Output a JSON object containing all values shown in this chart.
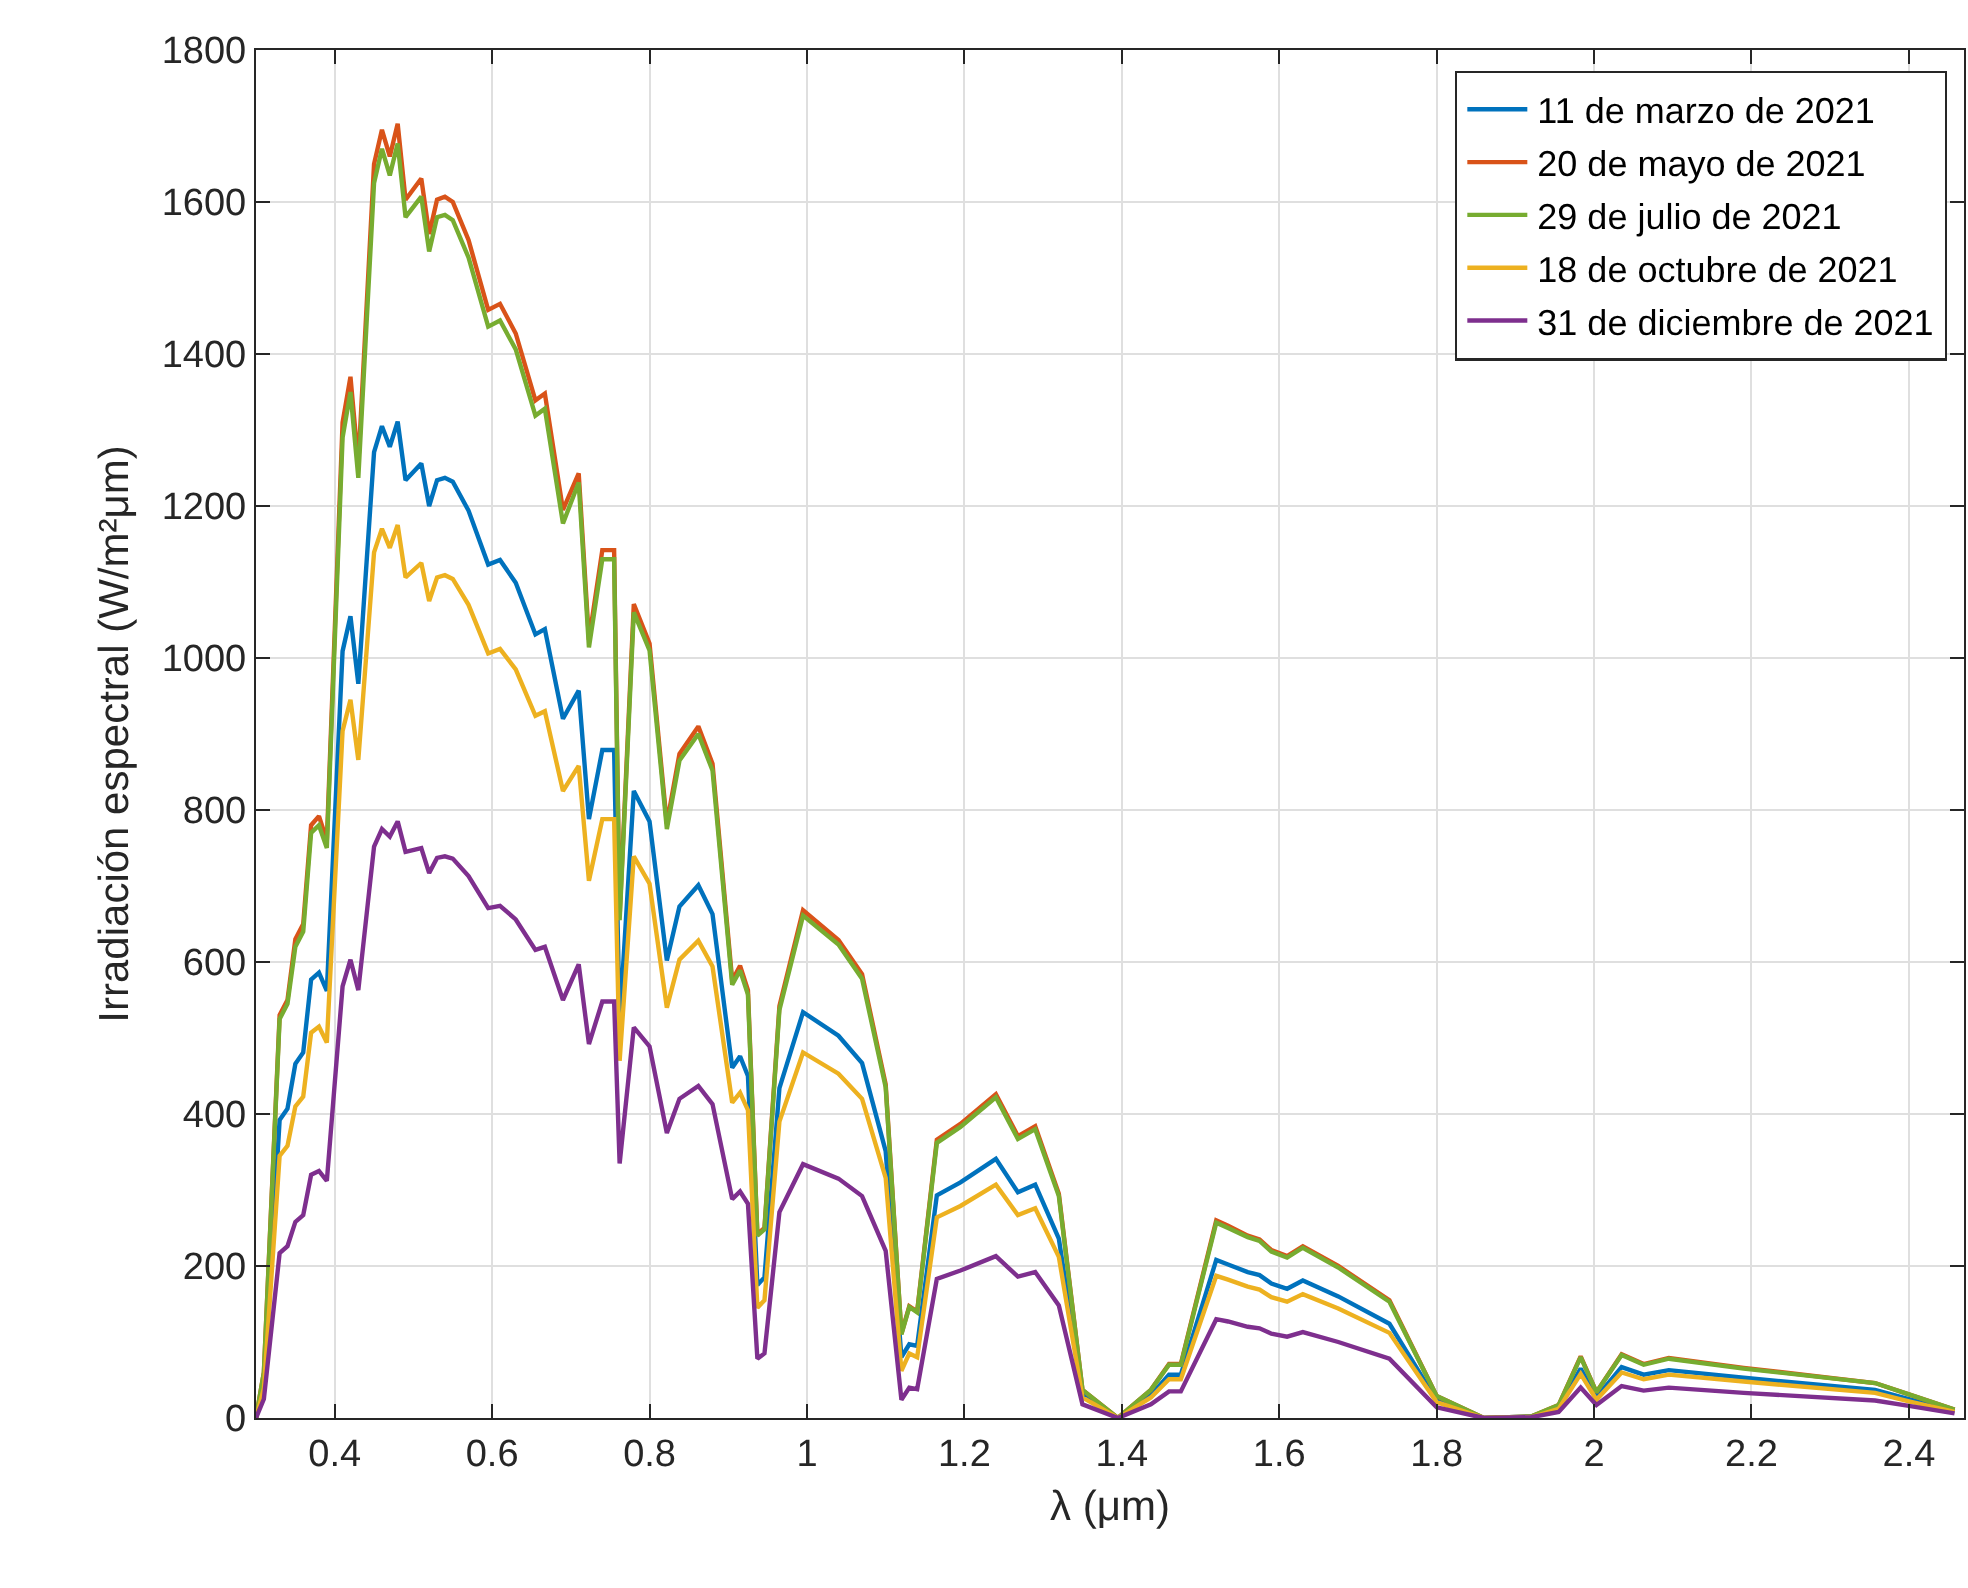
{
  "chart_data": {
    "type": "line",
    "xlabel": "λ (μm)",
    "ylabel": "Irradiación espectral (W/m²μm)",
    "x": [
      0.3,
      0.31,
      0.33,
      0.34,
      0.35,
      0.36,
      0.37,
      0.38,
      0.39,
      0.41,
      0.42,
      0.43,
      0.45,
      0.46,
      0.47,
      0.48,
      0.49,
      0.51,
      0.52,
      0.53,
      0.54,
      0.55,
      0.57,
      0.595,
      0.61,
      0.63,
      0.655,
      0.667,
      0.69,
      0.71,
      0.723,
      0.74,
      0.755,
      0.762,
      0.78,
      0.8,
      0.822,
      0.838,
      0.862,
      0.88,
      0.905,
      0.915,
      0.925,
      0.937,
      0.946,
      0.965,
      0.995,
      1.04,
      1.07,
      1.1,
      1.12,
      1.13,
      1.14,
      1.165,
      1.195,
      1.24,
      1.268,
      1.29,
      1.32,
      1.35,
      1.395,
      1.437,
      1.46,
      1.475,
      1.52,
      1.535,
      1.56,
      1.575,
      1.59,
      1.61,
      1.63,
      1.675,
      1.74,
      1.8,
      1.86,
      1.92,
      1.955,
      1.983,
      2.003,
      2.035,
      2.063,
      2.095,
      2.19,
      2.357,
      2.4,
      2.458
    ],
    "series": [
      {
        "name": "11 de marzo de 2021",
        "color": "#0072bd",
        "values": [
          0,
          44,
          392,
          407,
          466,
          481,
          577,
          586,
          562,
          1009,
          1055,
          966,
          1271,
          1305,
          1278,
          1311,
          1234,
          1256,
          1200,
          1234,
          1237,
          1232,
          1194,
          1123,
          1129,
          1099,
          1031,
          1038,
          920,
          957,
          788,
          879,
          879,
          520,
          825,
          785,
          602,
          673,
          701,
          663,
          461,
          476,
          450,
          175,
          185,
          434,
          534,
          503,
          467,
          351,
          80,
          97,
          95,
          293,
          310,
          341,
          297,
          307,
          236,
          30,
          0,
          30,
          57,
          57,
          208,
          202,
          192,
          188,
          177,
          170,
          181,
          160,
          124,
          23,
          0,
          2,
          14,
          65,
          27,
          67,
          57,
          63,
          53,
          37,
          25,
          9
        ]
      },
      {
        "name": "20 de mayo de 2021",
        "color": "#d95319",
        "values": [
          0,
          60,
          530,
          550,
          630,
          650,
          780,
          792,
          760,
          1310,
          1370,
          1255,
          1650,
          1695,
          1660,
          1703,
          1603,
          1631,
          1558,
          1603,
          1607,
          1600,
          1550,
          1458,
          1466,
          1427,
          1339,
          1348,
          1195,
          1243,
          1024,
          1142,
          1142,
          660,
          1071,
          1019,
          782,
          874,
          910,
          861,
          576,
          595,
          563,
          242,
          250,
          542,
          668,
          629,
          584,
          439,
          111,
          147,
          140,
          366,
          387,
          426,
          371,
          384,
          295,
          37,
          0,
          37,
          71,
          71,
          260,
          253,
          240,
          235,
          221,
          213,
          226,
          200,
          155,
          29,
          0,
          2,
          17,
          81,
          34,
          84,
          71,
          79,
          66,
          46,
          31,
          11
        ]
      },
      {
        "name": "29 de julio de 2021",
        "color": "#77ac30",
        "values": [
          0,
          60,
          525,
          545,
          620,
          640,
          770,
          780,
          750,
          1290,
          1350,
          1237,
          1625,
          1670,
          1635,
          1677,
          1580,
          1607,
          1535,
          1580,
          1583,
          1576,
          1527,
          1436,
          1444,
          1406,
          1319,
          1328,
          1177,
          1231,
          1014,
          1130,
          1130,
          655,
          1060,
          1010,
          775,
          865,
          900,
          852,
          570,
          589,
          557,
          240,
          248,
          537,
          661,
          623,
          578,
          435,
          110,
          146,
          139,
          362,
          383,
          422,
          367,
          380,
          292,
          37,
          0,
          37,
          70,
          70,
          257,
          250,
          238,
          233,
          219,
          211,
          224,
          198,
          153,
          29,
          0,
          2,
          17,
          80,
          34,
          83,
          70,
          78,
          65,
          46,
          31,
          11
        ]
      },
      {
        "name": "18 de octubre de 2021",
        "color": "#edb120",
        "values": [
          0,
          39,
          345,
          358,
          410,
          423,
          507,
          515,
          494,
          904,
          945,
          866,
          1139,
          1170,
          1145,
          1175,
          1106,
          1125,
          1075,
          1106,
          1109,
          1104,
          1070,
          1006,
          1012,
          985,
          924,
          930,
          825,
          858,
          707,
          788,
          788,
          470,
          739,
          703,
          540,
          603,
          628,
          594,
          415,
          428,
          405,
          145,
          155,
          390,
          481,
          453,
          420,
          316,
          62,
          85,
          80,
          264,
          279,
          307,
          267,
          276,
          212,
          27,
          0,
          27,
          51,
          51,
          187,
          182,
          173,
          169,
          159,
          153,
          163,
          144,
          112,
          21,
          0,
          1,
          12,
          58,
          24,
          60,
          51,
          57,
          48,
          33,
          22,
          8
        ]
      },
      {
        "name": "31 de diciembre de 2021",
        "color": "#7e2f8e",
        "values": [
          0,
          25,
          217,
          226,
          258,
          267,
          320,
          325,
          312,
          568,
          603,
          563,
          752,
          775,
          765,
          785,
          745,
          750,
          717,
          737,
          739,
          736,
          713,
          671,
          674,
          656,
          616,
          620,
          550,
          597,
          492,
          548,
          548,
          335,
          514,
          489,
          375,
          420,
          437,
          413,
          288,
          298,
          282,
          78,
          85,
          271,
          334,
          315,
          292,
          220,
          24,
          40,
          38,
          183,
          194,
          213,
          186,
          192,
          148,
          18,
          0,
          18,
          35,
          35,
          130,
          127,
          120,
          118,
          111,
          107,
          113,
          100,
          78,
          14,
          0,
          1,
          8,
          40,
          17,
          42,
          36,
          40,
          33,
          23,
          16,
          6
        ]
      }
    ],
    "xlim": [
      0.3,
      2.47
    ],
    "xticks": [
      0.4,
      0.6,
      0.8,
      1,
      1.2,
      1.4,
      1.6,
      1.8,
      2,
      2.2,
      2.4
    ],
    "ylim": [
      0,
      1800
    ],
    "yticks": [
      0,
      200,
      400,
      600,
      800,
      1000,
      1200,
      1400,
      1600,
      1800
    ],
    "grid": true,
    "legend": "top right",
    "marker": "none",
    "line_style": "solid"
  }
}
